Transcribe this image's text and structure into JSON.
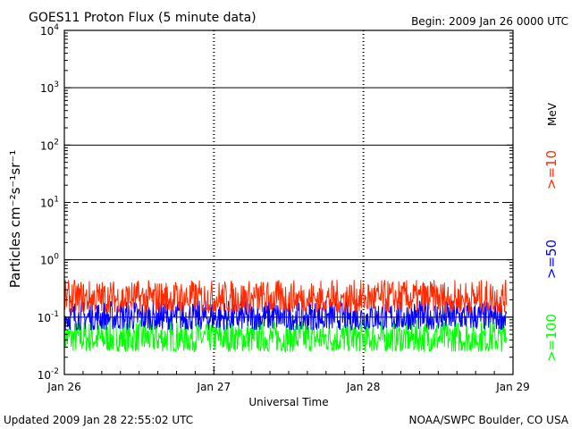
{
  "chart_data": {
    "type": "line",
    "title": "GOES11 Proton Flux (5 minute data)",
    "begin": "Begin: 2009 Jan 26 0000 UTC",
    "xlabel": "Universal Time",
    "ylabel": "Particles cm⁻²s⁻¹sr⁻¹",
    "unit_label": "MeV",
    "yscale": "log",
    "ylim": [
      0.01,
      10000
    ],
    "xlim": [
      "2009-01-26",
      "2009-01-29"
    ],
    "x_ticks": [
      "Jan 26",
      "Jan 27",
      "Jan 28",
      "Jan 29"
    ],
    "y_ticks": [
      {
        "base": "10",
        "exp": "-2"
      },
      {
        "base": "10",
        "exp": "-1"
      },
      {
        "base": "10",
        "exp": "0"
      },
      {
        "base": "10",
        "exp": "1"
      },
      {
        "base": "10",
        "exp": "2"
      },
      {
        "base": "10",
        "exp": "3"
      },
      {
        "base": "10",
        "exp": "4"
      }
    ],
    "series": [
      {
        "name": ">=10",
        "color": "#ff2a00",
        "typical_flux": [
          0.12,
          0.45
        ]
      },
      {
        "name": ">=50",
        "color": "#0000ff",
        "typical_flux": [
          0.06,
          0.2
        ]
      },
      {
        "name": ">=100",
        "color": "#00ff00",
        "typical_flux": [
          0.025,
          0.09
        ]
      }
    ],
    "data_end": "2009-01-28 22:55"
  },
  "footer": {
    "updated": "Updated 2009 Jan 28 22:55:02 UTC",
    "credit": "NOAA/SWPC Boulder, CO USA"
  }
}
